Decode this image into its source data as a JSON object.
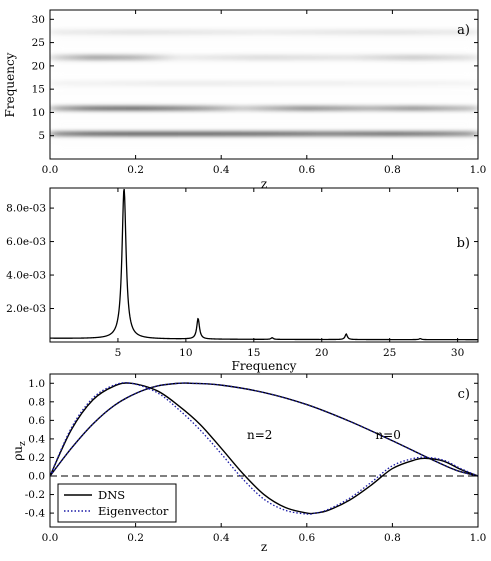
{
  "chart_data": [
    {
      "id": "a",
      "type": "heatmap",
      "panel_label": "a)",
      "xlabel": "z",
      "ylabel": "Frequency",
      "xlim": [
        0.0,
        1.0
      ],
      "ylim": [
        0,
        32
      ],
      "xticks": [
        "0.0",
        "0.2",
        "0.4",
        "0.6",
        "0.8",
        "1.0"
      ],
      "yticks": [
        "5",
        "10",
        "15",
        "20",
        "25",
        "30"
      ],
      "colormap": "white-to-black",
      "bands": [
        {
          "frequency": 5.4,
          "intensity": [
            [
              0.0,
              0.55
            ],
            [
              0.1,
              0.85
            ],
            [
              0.2,
              0.95
            ],
            [
              0.35,
              0.92
            ],
            [
              0.5,
              0.85
            ],
            [
              0.65,
              0.7
            ],
            [
              0.8,
              0.8
            ],
            [
              0.9,
              0.7
            ],
            [
              1.0,
              0.5
            ]
          ]
        },
        {
          "frequency": 10.9,
          "intensity": [
            [
              0.0,
              0.35
            ],
            [
              0.1,
              0.75
            ],
            [
              0.2,
              0.85
            ],
            [
              0.35,
              0.55
            ],
            [
              0.45,
              0.25
            ],
            [
              0.6,
              0.6
            ],
            [
              0.75,
              0.4
            ],
            [
              0.85,
              0.55
            ],
            [
              1.0,
              0.3
            ]
          ]
        },
        {
          "frequency": 16.3,
          "intensity": [
            [
              0.0,
              0.05
            ],
            [
              0.3,
              0.1
            ],
            [
              0.6,
              0.08
            ],
            [
              1.0,
              0.05
            ]
          ]
        },
        {
          "frequency": 21.8,
          "intensity": [
            [
              0.0,
              0.2
            ],
            [
              0.1,
              0.55
            ],
            [
              0.2,
              0.45
            ],
            [
              0.3,
              0.1
            ],
            [
              0.5,
              0.2
            ],
            [
              0.7,
              0.15
            ],
            [
              0.85,
              0.3
            ],
            [
              1.0,
              0.15
            ]
          ]
        },
        {
          "frequency": 27.2,
          "intensity": [
            [
              0.0,
              0.1
            ],
            [
              0.2,
              0.15
            ],
            [
              0.5,
              0.1
            ],
            [
              0.8,
              0.15
            ],
            [
              1.0,
              0.1
            ]
          ]
        }
      ]
    },
    {
      "id": "b",
      "type": "line",
      "panel_label": "b)",
      "xlabel": "Frequency",
      "ylabel": "",
      "xlim": [
        0.0,
        31.5
      ],
      "ylim": [
        0.0,
        0.0092
      ],
      "xticks": [
        "5",
        "10",
        "15",
        "20",
        "25",
        "30"
      ],
      "yticks": [
        "2.0e-03",
        "4.0e-03",
        "6.0e-03",
        "8.0e-03"
      ],
      "ytick_values": [
        0.002,
        0.004,
        0.006,
        0.008
      ],
      "baseline": 0.00022,
      "peaks": [
        {
          "frequency": 5.45,
          "height": 0.0092,
          "width": 0.18
        },
        {
          "frequency": 10.9,
          "height": 0.00145,
          "width": 0.12
        },
        {
          "frequency": 16.35,
          "height": 0.00032,
          "width": 0.1
        },
        {
          "frequency": 21.8,
          "height": 0.00055,
          "width": 0.1
        },
        {
          "frequency": 27.25,
          "height": 0.00028,
          "width": 0.1
        },
        {
          "frequency": 30.2,
          "height": 0.00022,
          "width": 0.08
        }
      ]
    },
    {
      "id": "c",
      "type": "line",
      "panel_label": "c)",
      "xlabel": "z",
      "ylabel": "ρu_z",
      "xlim": [
        0.0,
        1.0
      ],
      "ylim": [
        -0.55,
        1.1
      ],
      "xticks": [
        "0.0",
        "0.2",
        "0.4",
        "0.6",
        "0.8",
        "1.0"
      ],
      "yticks": [
        "-0.4",
        "-0.2",
        "0.0",
        "0.2",
        "0.4",
        "0.6",
        "0.8",
        "1.0"
      ],
      "ytick_values": [
        -0.4,
        -0.2,
        0.0,
        0.2,
        0.4,
        0.6,
        0.8,
        1.0
      ],
      "annotations": [
        {
          "text": "n=2",
          "x": 0.49,
          "y": 0.4
        },
        {
          "text": "n=0",
          "x": 0.79,
          "y": 0.4
        }
      ],
      "zero_line": {
        "y": 0.0,
        "style": "dashed"
      },
      "legend": {
        "position": "lower-left",
        "entries": [
          {
            "label": "DNS",
            "style": "solid",
            "color": "#000000"
          },
          {
            "label": "Eigenvector",
            "style": "dotted",
            "color": "#1a1aa6"
          }
        ]
      },
      "series": [
        {
          "name": "n=0",
          "kind": "DNS",
          "x": [
            0.0,
            0.05,
            0.1,
            0.15,
            0.2,
            0.25,
            0.3,
            0.33,
            0.4,
            0.5,
            0.6,
            0.7,
            0.8,
            0.9,
            0.95,
            1.0
          ],
          "y": [
            0.0,
            0.3,
            0.56,
            0.76,
            0.89,
            0.97,
            1.0,
            1.0,
            0.98,
            0.9,
            0.77,
            0.59,
            0.38,
            0.16,
            0.06,
            0.0
          ]
        },
        {
          "name": "n=0",
          "kind": "Eigenvector",
          "x": [
            0.0,
            0.05,
            0.1,
            0.15,
            0.2,
            0.25,
            0.3,
            0.33,
            0.4,
            0.5,
            0.6,
            0.7,
            0.8,
            0.9,
            0.95,
            1.0
          ],
          "y": [
            0.0,
            0.3,
            0.56,
            0.76,
            0.89,
            0.97,
            1.0,
            1.0,
            0.98,
            0.9,
            0.77,
            0.59,
            0.38,
            0.16,
            0.06,
            0.0
          ]
        },
        {
          "name": "n=2",
          "kind": "DNS",
          "x": [
            0.0,
            0.05,
            0.1,
            0.15,
            0.19,
            0.25,
            0.3,
            0.35,
            0.4,
            0.45,
            0.5,
            0.55,
            0.6,
            0.62,
            0.65,
            0.7,
            0.75,
            0.8,
            0.85,
            0.88,
            0.92,
            0.96,
            1.0
          ],
          "y": [
            0.0,
            0.5,
            0.82,
            0.97,
            1.0,
            0.92,
            0.76,
            0.56,
            0.3,
            0.03,
            -0.2,
            -0.34,
            -0.4,
            -0.4,
            -0.37,
            -0.26,
            -0.1,
            0.08,
            0.17,
            0.19,
            0.16,
            0.07,
            0.0
          ]
        },
        {
          "name": "n=2",
          "kind": "Eigenvector",
          "x": [
            0.0,
            0.05,
            0.1,
            0.15,
            0.19,
            0.25,
            0.3,
            0.35,
            0.4,
            0.45,
            0.5,
            0.55,
            0.6,
            0.62,
            0.65,
            0.7,
            0.75,
            0.8,
            0.85,
            0.88,
            0.92,
            0.96,
            1.0
          ],
          "y": [
            0.0,
            0.52,
            0.84,
            0.98,
            1.0,
            0.9,
            0.72,
            0.5,
            0.24,
            -0.03,
            -0.25,
            -0.37,
            -0.41,
            -0.4,
            -0.36,
            -0.24,
            -0.07,
            0.11,
            0.19,
            0.2,
            0.17,
            0.08,
            0.0
          ]
        }
      ]
    }
  ]
}
